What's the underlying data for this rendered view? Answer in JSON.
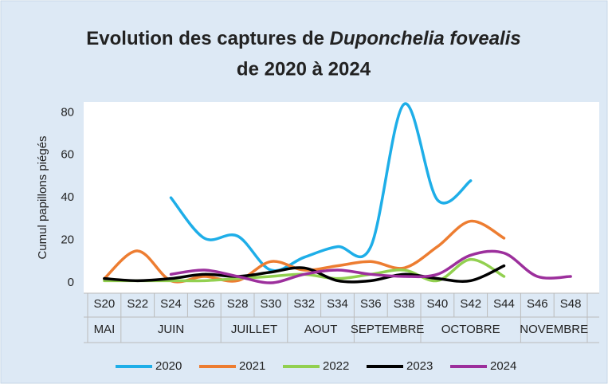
{
  "chart_data": {
    "type": "line",
    "title_line1": "Evolution des captures de",
    "title_italic": "Duponchelia fovealis",
    "title_line2": "de 2020 à 2024",
    "y_label": "Cumul papillons piégés",
    "categories": [
      "S20",
      "S22",
      "S24",
      "S26",
      "S28",
      "S30",
      "S32",
      "S34",
      "S36",
      "S38",
      "S40",
      "S42",
      "S44",
      "S46",
      "S48"
    ],
    "categories_level2": [
      "MAI",
      "JUIN",
      null,
      null,
      "JUILLET",
      null,
      "AOUT",
      null,
      "SEPTEMBRE",
      null,
      "OCTOBRE",
      null,
      null,
      "NOVEMBRE",
      null
    ],
    "series": [
      {
        "name": "2020",
        "color": "#1eaee8",
        "values": [
          null,
          null,
          40,
          21,
          22,
          6,
          12,
          17,
          17,
          84,
          39,
          48,
          null,
          null,
          null
        ]
      },
      {
        "name": "2021",
        "color": "#ed7d31",
        "values": [
          2,
          15,
          1,
          3,
          1,
          10,
          6,
          8,
          10,
          7,
          17,
          29,
          21,
          null,
          null
        ]
      },
      {
        "name": "2022",
        "color": "#92d050",
        "values": [
          1,
          1,
          1,
          1,
          2,
          3,
          4,
          2,
          4,
          6,
          1,
          11,
          3,
          null,
          null
        ]
      },
      {
        "name": "2023",
        "color": "#000000",
        "values": [
          2,
          1,
          2,
          4,
          3,
          5,
          7,
          1,
          1,
          4,
          2,
          1,
          8,
          null,
          null
        ]
      },
      {
        "name": "2024",
        "color": "#9c2f9c",
        "values": [
          null,
          null,
          4,
          6,
          3,
          0,
          4,
          6,
          4,
          3,
          4,
          13,
          14,
          3,
          3
        ]
      }
    ],
    "ylim": [
      0,
      85
    ],
    "yticks": [
      0,
      20,
      40,
      60,
      80
    ],
    "grid": false,
    "smooth": true,
    "legend": "bottom"
  }
}
